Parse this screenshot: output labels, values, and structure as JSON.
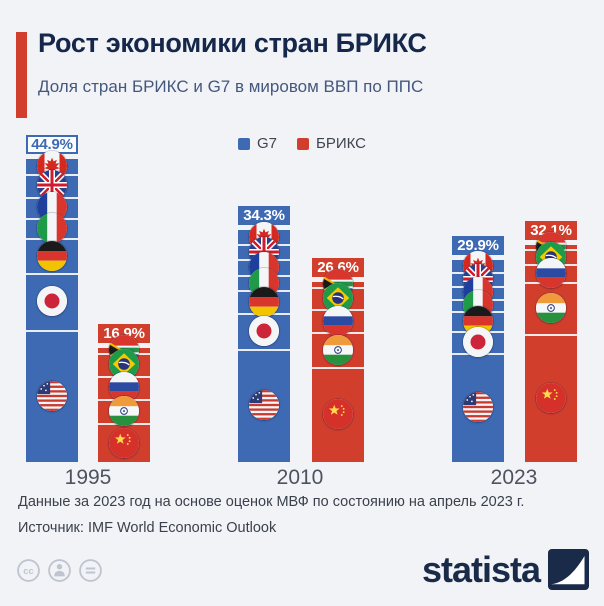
{
  "header": {
    "title": "Рост экономики стран БРИКС",
    "subtitle": "Доля стран БРИКС и G7 в мировом ВВП по ППС",
    "accent_color": "#d23e2c"
  },
  "chart_data": {
    "type": "bar",
    "title": "Рост экономики стран БРИКС",
    "subtitle": "Доля стран БРИКС и G7 в мировом ВВП по ППС",
    "categories": [
      "1995",
      "2010",
      "2023"
    ],
    "unit": "%",
    "ylim": [
      0,
      48
    ],
    "grid": false,
    "legend_position": "top-center",
    "series": [
      {
        "name": "G7",
        "color": "#3d6ab3",
        "values": [
          44.9,
          34.3,
          29.9
        ],
        "labels": [
          "44.9%",
          "34.3%",
          "29.9%"
        ],
        "label_variants": [
          "outline",
          "fill",
          "fill"
        ],
        "members": [
          {
            "flag": "canada",
            "share_est": [
              2.2,
              2.1,
              1.7
            ]
          },
          {
            "flag": "uk",
            "share_est": [
              3.4,
              2.2,
              2.1
            ]
          },
          {
            "flag": "france",
            "share_est": [
              3.1,
              2.4,
              2.0
            ]
          },
          {
            "flag": "italy",
            "share_est": [
              3.0,
              2.2,
              1.8
            ]
          },
          {
            "flag": "germany",
            "share_est": [
              5.2,
              3.4,
              2.9
            ]
          },
          {
            "flag": "japan",
            "share_est": [
              8.4,
              5.3,
              3.2
            ]
          },
          {
            "flag": "usa",
            "share_est": [
              19.6,
              16.7,
              16.2
            ]
          }
        ]
      },
      {
        "name": "БРИКС",
        "color": "#d23e2c",
        "values": [
          16.9,
          26.6,
          32.1
        ],
        "labels": [
          "16.9%",
          "26.6%",
          "32.1%"
        ],
        "label_variants": [
          "fill",
          "fill",
          "fill"
        ],
        "members": [
          {
            "flag": "southafrica",
            "share_est": [
              0.7,
              0.7,
              0.6
            ]
          },
          {
            "flag": "brazil",
            "share_est": [
              3.4,
              3.3,
              2.2
            ]
          },
          {
            "flag": "russia",
            "share_est": [
              3.4,
              3.4,
              2.7
            ]
          },
          {
            "flag": "india",
            "share_est": [
              3.6,
              5.2,
              7.7
            ]
          },
          {
            "flag": "china",
            "share_est": [
              5.8,
              14.0,
              18.9
            ]
          }
        ]
      }
    ]
  },
  "footnotes": {
    "note": "Данные за 2023 год на основе оценок МВФ по состоянию на апрель 2023 г.",
    "source": "Источник: IMF World Economic Outlook"
  },
  "branding": {
    "logo_text": "statista",
    "logo_color": "#1a2b4a"
  },
  "license": {
    "icons": [
      "cc-icon",
      "attribution-person-icon",
      "no-derivatives-icon"
    ]
  }
}
